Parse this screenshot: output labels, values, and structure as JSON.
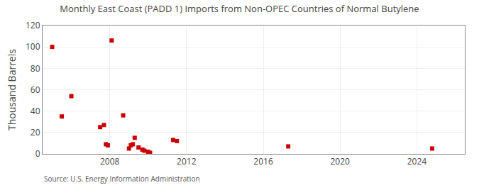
{
  "chart_data": {
    "type": "scatter",
    "title": "Monthly East Coast (PADD 1) Imports from Non-OPEC Countries of Normal Butylene",
    "ylabel": "Thousand Barrels",
    "annotations": [
      "Source: U.S. Energy Information Administration"
    ],
    "color": "#cc0000",
    "marker": "square",
    "grid": true,
    "xlim": [
      2004.5,
      2026.5
    ],
    "ylim": [
      0,
      120
    ],
    "xticks": [
      2008,
      2012,
      2016,
      2020,
      2024
    ],
    "yticks": [
      0,
      20,
      40,
      60,
      80,
      100,
      120
    ],
    "x": [
      2005.0,
      2005.5,
      2006.0,
      2007.5,
      2007.7,
      2007.8,
      2007.9,
      2008.1,
      2008.7,
      2009.0,
      2009.1,
      2009.2,
      2009.3,
      2009.5,
      2009.7,
      2009.8,
      2010.0,
      2010.1,
      2011.3,
      2011.5,
      2017.3,
      2024.8
    ],
    "values": [
      100,
      35,
      54,
      25,
      27,
      9,
      8,
      106,
      36,
      5,
      8,
      9,
      15,
      6,
      4,
      3,
      2,
      1,
      13,
      12,
      7,
      5
    ]
  }
}
